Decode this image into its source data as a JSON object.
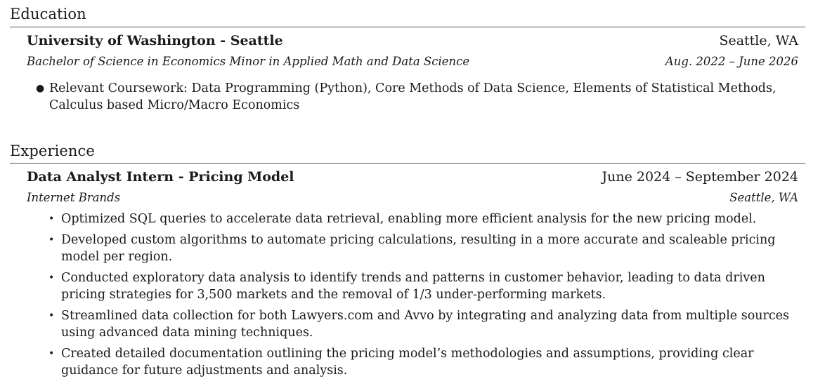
{
  "education": {
    "heading": "Education",
    "school": "University of Washington - Seattle",
    "location": "Seattle, WA",
    "degree": "Bachelor of Science in Economics Minor in Applied Math and Data Science",
    "dates": "Aug. 2022 – June 2026",
    "bullets": [
      "Relevant Coursework: Data Programming (Python), Core Methods of Data Science, Elements of Statistical Methods, Calculus based Micro/Macro Economics"
    ]
  },
  "experience": {
    "heading": "Experience",
    "role": "Data Analyst Intern - Pricing Model",
    "dates": "June 2024 – September 2024",
    "company": "Internet Brands",
    "location": "Seattle, WA",
    "bullets": [
      "Optimized SQL queries to accelerate data retrieval, enabling more efficient analysis for the new pricing model.",
      "Developed custom algorithms to automate pricing calculations, resulting in a more accurate and scaleable pricing model per region.",
      "Conducted exploratory data analysis to identify trends and patterns in customer behavior, leading to data driven pricing strategies for 3,500 markets and the removal of 1/3 under-performing markets.",
      "Streamlined data collection for both Lawyers.com and Avvo by integrating and analyzing data from multiple sources using advanced data mining techniques.",
      "Created detailed documentation outlining the pricing model’s methodologies and assumptions, providing clear guidance for future adjustments and analysis."
    ]
  }
}
